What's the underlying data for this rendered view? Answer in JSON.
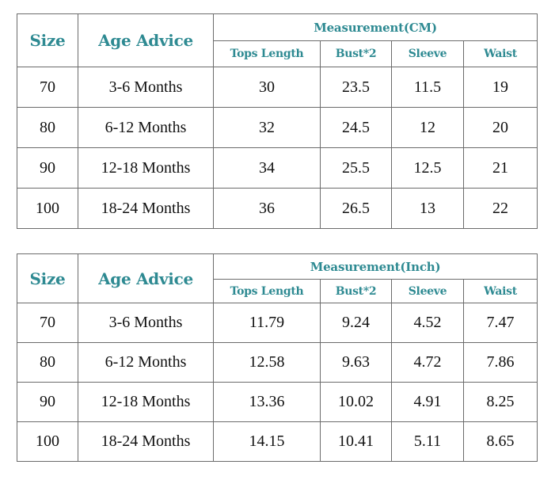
{
  "headers": {
    "size": "Size",
    "age": "Age Advice",
    "tops_length": "Tops Length",
    "bust": "Bust*2",
    "sleeve": "Sleeve",
    "waist": "Waist"
  },
  "colors": {
    "header_text": "#2e8a92",
    "border": "#6b6b6b",
    "cell_text": "#111111"
  },
  "tables": [
    {
      "group_title": "Measurement(CM)",
      "rows": [
        {
          "size": "70",
          "age": "3-6 Months",
          "tops": "30",
          "bust": "23.5",
          "sleeve": "11.5",
          "waist": "19"
        },
        {
          "size": "80",
          "age": "6-12 Months",
          "tops": "32",
          "bust": "24.5",
          "sleeve": "12",
          "waist": "20"
        },
        {
          "size": "90",
          "age": "12-18 Months",
          "tops": "34",
          "bust": "25.5",
          "sleeve": "12.5",
          "waist": "21"
        },
        {
          "size": "100",
          "age": "18-24 Months",
          "tops": "36",
          "bust": "26.5",
          "sleeve": "13",
          "waist": "22"
        }
      ]
    },
    {
      "group_title": "Measurement(Inch)",
      "rows": [
        {
          "size": "70",
          "age": "3-6 Months",
          "tops": "11.79",
          "bust": "9.24",
          "sleeve": "4.52",
          "waist": "7.47"
        },
        {
          "size": "80",
          "age": "6-12 Months",
          "tops": "12.58",
          "bust": "9.63",
          "sleeve": "4.72",
          "waist": "7.86"
        },
        {
          "size": "90",
          "age": "12-18 Months",
          "tops": "13.36",
          "bust": "10.02",
          "sleeve": "4.91",
          "waist": "8.25"
        },
        {
          "size": "100",
          "age": "18-24 Months",
          "tops": "14.15",
          "bust": "10.41",
          "sleeve": "5.11",
          "waist": "8.65"
        }
      ]
    }
  ]
}
